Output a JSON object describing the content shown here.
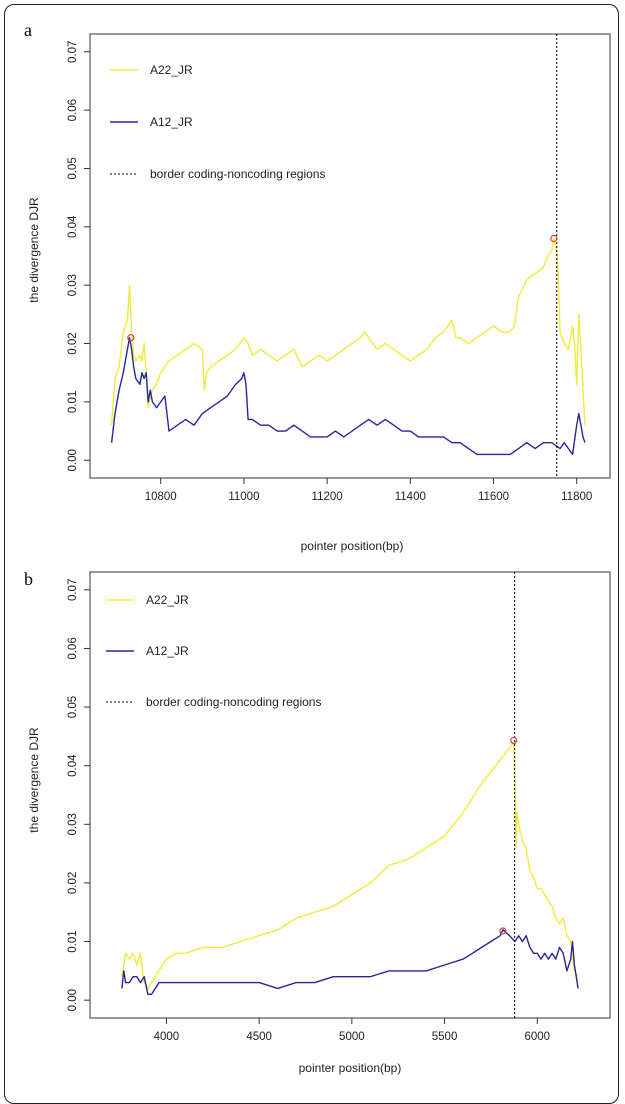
{
  "colors": {
    "A22_JR": "#f0ea3c",
    "A12_JR": "#27279a",
    "border": "#000000",
    "marker": "#d04040"
  },
  "chart_data": [
    {
      "panel": "a",
      "type": "line",
      "xlabel": "pointer position(bp)",
      "ylabel": "the divergence DJR",
      "xlim": [
        10680,
        11830
      ],
      "ylim": [
        0,
        0.07
      ],
      "xticks": [
        10800,
        11000,
        11200,
        11400,
        11600,
        11800
      ],
      "yticks": [
        0.0,
        0.01,
        0.02,
        0.03,
        0.04,
        0.05,
        0.06,
        0.07
      ],
      "legend": [
        "A22_JR",
        "A12_JR",
        "border coding-noncoding regions"
      ],
      "border_x": 11752,
      "markers": [
        {
          "series": "A22_JR",
          "x": 11745,
          "y": 0.038
        },
        {
          "series": "A12_JR",
          "x": 10728,
          "y": 0.021
        }
      ],
      "series": [
        {
          "name": "A22_JR",
          "color": "#f0ea3c",
          "x": [
            10682,
            10690,
            10700,
            10710,
            10720,
            10725,
            10730,
            10735,
            10740,
            10750,
            10755,
            10760,
            10765,
            10770,
            10780,
            10790,
            10800,
            10820,
            10840,
            10860,
            10880,
            10900,
            10905,
            10910,
            10920,
            10940,
            10960,
            10980,
            11000,
            11010,
            11020,
            11040,
            11060,
            11080,
            11100,
            11120,
            11140,
            11160,
            11180,
            11200,
            11220,
            11240,
            11260,
            11280,
            11290,
            11300,
            11320,
            11340,
            11360,
            11380,
            11400,
            11420,
            11440,
            11460,
            11480,
            11500,
            11510,
            11520,
            11540,
            11560,
            11580,
            11600,
            11620,
            11640,
            11650,
            11660,
            11680,
            11700,
            11720,
            11730,
            11740,
            11745,
            11752,
            11756,
            11760,
            11770,
            11780,
            11790,
            11795,
            11800,
            11805,
            11810,
            11815,
            11820
          ],
          "y": [
            0.006,
            0.014,
            0.016,
            0.022,
            0.024,
            0.03,
            0.022,
            0.018,
            0.017,
            0.018,
            0.017,
            0.02,
            0.015,
            0.009,
            0.012,
            0.013,
            0.015,
            0.017,
            0.018,
            0.019,
            0.02,
            0.019,
            0.012,
            0.015,
            0.016,
            0.017,
            0.018,
            0.019,
            0.021,
            0.02,
            0.018,
            0.019,
            0.018,
            0.017,
            0.018,
            0.019,
            0.016,
            0.017,
            0.018,
            0.017,
            0.018,
            0.019,
            0.02,
            0.021,
            0.022,
            0.021,
            0.019,
            0.02,
            0.019,
            0.018,
            0.017,
            0.018,
            0.019,
            0.021,
            0.022,
            0.024,
            0.021,
            0.021,
            0.02,
            0.021,
            0.022,
            0.023,
            0.022,
            0.022,
            0.023,
            0.028,
            0.031,
            0.032,
            0.033,
            0.035,
            0.036,
            0.038,
            0.036,
            0.031,
            0.022,
            0.02,
            0.019,
            0.023,
            0.02,
            0.013,
            0.025,
            0.019,
            0.012,
            0.006
          ]
        },
        {
          "name": "A12_JR",
          "color": "#27279a",
          "x": [
            10682,
            10690,
            10700,
            10710,
            10720,
            10725,
            10730,
            10735,
            10740,
            10750,
            10755,
            10760,
            10765,
            10770,
            10775,
            10780,
            10790,
            10800,
            10810,
            10820,
            10840,
            10860,
            10880,
            10900,
            10920,
            10940,
            10960,
            10980,
            10995,
            11000,
            11005,
            11010,
            11020,
            11040,
            11060,
            11080,
            11100,
            11120,
            11140,
            11160,
            11180,
            11200,
            11220,
            11240,
            11260,
            11280,
            11300,
            11320,
            11340,
            11360,
            11380,
            11400,
            11420,
            11440,
            11460,
            11480,
            11500,
            11520,
            11540,
            11560,
            11580,
            11600,
            11620,
            11640,
            11660,
            11680,
            11700,
            11720,
            11740,
            11760,
            11770,
            11780,
            11790,
            11800,
            11805,
            11810,
            11815,
            11820
          ],
          "y": [
            0.003,
            0.008,
            0.012,
            0.015,
            0.019,
            0.021,
            0.019,
            0.016,
            0.014,
            0.013,
            0.015,
            0.014,
            0.015,
            0.01,
            0.012,
            0.01,
            0.009,
            0.01,
            0.011,
            0.005,
            0.006,
            0.007,
            0.006,
            0.008,
            0.009,
            0.01,
            0.011,
            0.013,
            0.014,
            0.015,
            0.013,
            0.007,
            0.007,
            0.006,
            0.006,
            0.005,
            0.005,
            0.006,
            0.005,
            0.004,
            0.004,
            0.004,
            0.005,
            0.004,
            0.005,
            0.006,
            0.007,
            0.006,
            0.007,
            0.006,
            0.005,
            0.005,
            0.004,
            0.004,
            0.004,
            0.004,
            0.003,
            0.003,
            0.002,
            0.001,
            0.001,
            0.001,
            0.001,
            0.001,
            0.002,
            0.003,
            0.002,
            0.003,
            0.003,
            0.002,
            0.003,
            0.002,
            0.001,
            0.006,
            0.008,
            0.006,
            0.004,
            0.003
          ]
        }
      ]
    },
    {
      "panel": "b",
      "type": "line",
      "xlabel": "pointer position(bp)",
      "ylabel": "the divergence DJR",
      "xlim": [
        3700,
        6280
      ],
      "ylim": [
        0,
        0.07
      ],
      "xticks": [
        4000,
        4500,
        5000,
        5500,
        6000
      ],
      "yticks": [
        0.0,
        0.01,
        0.02,
        0.03,
        0.04,
        0.05,
        0.06,
        0.07
      ],
      "legend": [
        "A22_JR",
        "A12_JR",
        "border coding-noncoding regions"
      ],
      "border_x": 5878,
      "markers": [
        {
          "series": "A22_JR",
          "x": 5873,
          "y": 0.0443
        },
        {
          "series": "A12_JR",
          "x": 5815,
          "y": 0.0118
        }
      ],
      "series": [
        {
          "name": "A22_JR",
          "color": "#f0ea3c",
          "x": [
            3760,
            3780,
            3800,
            3820,
            3840,
            3860,
            3880,
            3900,
            3920,
            3940,
            3960,
            3980,
            4000,
            4050,
            4100,
            4200,
            4300,
            4400,
            4500,
            4600,
            4700,
            4800,
            4900,
            5000,
            5100,
            5200,
            5300,
            5400,
            5500,
            5600,
            5700,
            5750,
            5800,
            5850,
            5873,
            5880,
            5885,
            5890,
            5900,
            5920,
            5940,
            5960,
            5980,
            6000,
            6020,
            6040,
            6060,
            6080,
            6100,
            6120,
            6140,
            6160,
            6180,
            6200,
            6220
          ],
          "y": [
            0.004,
            0.008,
            0.007,
            0.008,
            0.006,
            0.008,
            0.003,
            0.002,
            0.003,
            0.004,
            0.005,
            0.006,
            0.007,
            0.008,
            0.008,
            0.009,
            0.009,
            0.01,
            0.011,
            0.012,
            0.014,
            0.015,
            0.016,
            0.018,
            0.02,
            0.023,
            0.024,
            0.026,
            0.028,
            0.032,
            0.037,
            0.039,
            0.041,
            0.043,
            0.044,
            0.036,
            0.026,
            0.032,
            0.03,
            0.027,
            0.026,
            0.022,
            0.021,
            0.019,
            0.019,
            0.018,
            0.017,
            0.016,
            0.014,
            0.013,
            0.014,
            0.011,
            0.01,
            0.005,
            0.004
          ]
        },
        {
          "name": "A12_JR",
          "color": "#27279a",
          "x": [
            3760,
            3770,
            3780,
            3800,
            3820,
            3840,
            3860,
            3880,
            3900,
            3920,
            3940,
            3960,
            3980,
            4000,
            4050,
            4100,
            4200,
            4300,
            4400,
            4500,
            4600,
            4700,
            4800,
            4900,
            5000,
            5100,
            5200,
            5300,
            5400,
            5500,
            5600,
            5650,
            5700,
            5750,
            5800,
            5815,
            5850,
            5880,
            5900,
            5920,
            5940,
            5960,
            5980,
            6000,
            6020,
            6040,
            6060,
            6080,
            6100,
            6120,
            6140,
            6160,
            6180,
            6190,
            6200,
            6220
          ],
          "y": [
            0.002,
            0.005,
            0.003,
            0.003,
            0.004,
            0.004,
            0.003,
            0.004,
            0.001,
            0.001,
            0.002,
            0.003,
            0.003,
            0.003,
            0.003,
            0.003,
            0.003,
            0.003,
            0.003,
            0.003,
            0.002,
            0.003,
            0.003,
            0.004,
            0.004,
            0.004,
            0.005,
            0.005,
            0.005,
            0.006,
            0.007,
            0.008,
            0.009,
            0.01,
            0.011,
            0.012,
            0.011,
            0.01,
            0.011,
            0.01,
            0.011,
            0.009,
            0.008,
            0.008,
            0.007,
            0.008,
            0.007,
            0.008,
            0.007,
            0.009,
            0.008,
            0.005,
            0.007,
            0.01,
            0.006,
            0.002
          ]
        }
      ]
    }
  ]
}
